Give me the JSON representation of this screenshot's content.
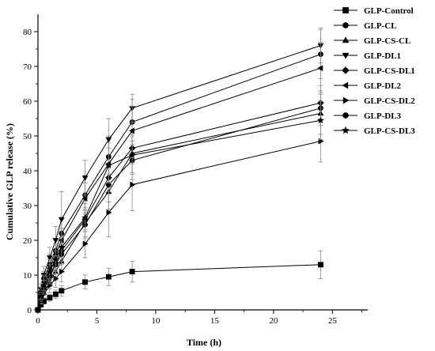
{
  "chart_data": {
    "type": "line",
    "title": "",
    "xlabel": "Time (h)",
    "ylabel": "Cumulative GLP release (%)",
    "xlim": [
      0,
      28
    ],
    "ylim": [
      0,
      85
    ],
    "xticks": [
      0,
      5,
      10,
      15,
      20,
      25
    ],
    "yticks": [
      0,
      10,
      20,
      30,
      40,
      50,
      60,
      70,
      80
    ],
    "grid": false,
    "legend_position": "right",
    "x": [
      0,
      0.25,
      0.5,
      1,
      1.5,
      2,
      4,
      6,
      8,
      24
    ],
    "series": [
      {
        "name": "GLP-Control",
        "marker": "square",
        "values": [
          0,
          1.5,
          2.5,
          3.5,
          4.5,
          5.5,
          8,
          9.5,
          11,
          13
        ],
        "error": [
          0,
          0.5,
          0.8,
          1,
          1.2,
          1.5,
          2,
          2.5,
          3,
          4
        ]
      },
      {
        "name": "GLP-CL",
        "marker": "circle",
        "values": [
          0,
          5,
          9,
          13,
          17,
          22,
          33,
          44,
          54,
          73.5
        ],
        "error": [
          0,
          1.5,
          2,
          3,
          3.5,
          4,
          5,
          6,
          6.5,
          7
        ]
      },
      {
        "name": "GLP-CS-CL",
        "marker": "triangle-up",
        "values": [
          0,
          3,
          5,
          8,
          11,
          14,
          25,
          34,
          45,
          56.5
        ],
        "error": [
          0,
          1,
          1.5,
          2,
          2.5,
          3,
          4,
          5,
          5.5,
          6
        ]
      },
      {
        "name": "GLP-DL1",
        "marker": "triangle-down",
        "values": [
          0,
          6,
          10,
          15,
          20,
          26,
          38,
          49,
          58,
          76
        ],
        "error": [
          0,
          1.5,
          2.5,
          3,
          4,
          8,
          5,
          6,
          4,
          5
        ]
      },
      {
        "name": "GLP-CS-DL1",
        "marker": "diamond",
        "values": [
          0,
          4,
          6.5,
          10,
          13.5,
          17,
          26,
          38,
          46.5,
          59.5
        ],
        "error": [
          0,
          1,
          1.5,
          2,
          2.5,
          3,
          3.5,
          4,
          4.5,
          5
        ]
      },
      {
        "name": "GLP-DL2",
        "marker": "triangle-left",
        "values": [
          0,
          5,
          8,
          12,
          16,
          20,
          32,
          42,
          51.5,
          69.5
        ],
        "error": [
          0,
          1.5,
          2,
          2.5,
          3,
          3.5,
          4.5,
          6,
          7,
          7.5
        ]
      },
      {
        "name": "GLP-CS-DL2",
        "marker": "triangle-right",
        "values": [
          0,
          2.5,
          4.5,
          7,
          9,
          11,
          19,
          28,
          36,
          48.5
        ],
        "error": [
          0,
          0.8,
          1.2,
          2,
          2.5,
          3,
          4,
          7,
          7.5,
          6
        ]
      },
      {
        "name": "GLP-DL3",
        "marker": "circle",
        "values": [
          0,
          3.5,
          6,
          9.5,
          13,
          16,
          24.5,
          36,
          43,
          58
        ],
        "error": [
          0,
          1,
          1.5,
          2,
          2.5,
          3,
          4,
          5,
          5.5,
          5
        ]
      },
      {
        "name": "GLP-CS-DL3",
        "marker": "star",
        "values": [
          0,
          4,
          7,
          11,
          14.5,
          18,
          26.5,
          41.5,
          44.5,
          54.5
        ],
        "error": [
          0,
          1,
          1.5,
          2,
          2.5,
          3,
          4,
          5,
          5.5,
          5.5
        ]
      }
    ]
  }
}
